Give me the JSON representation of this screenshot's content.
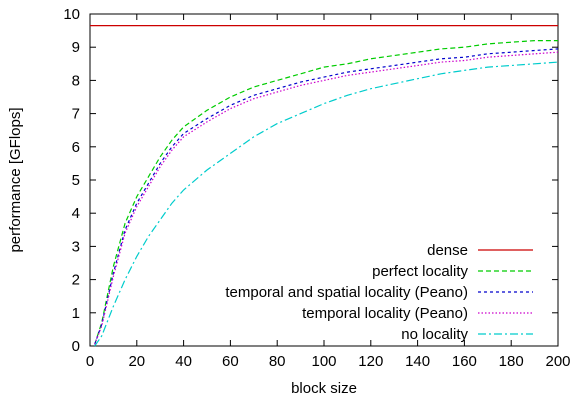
{
  "chart_data": {
    "type": "line",
    "xlabel": "block size",
    "ylabel": "performance [GFlops]",
    "xlim": [
      0,
      200
    ],
    "ylim": [
      0,
      10
    ],
    "xticks": [
      0,
      20,
      40,
      60,
      80,
      100,
      120,
      140,
      160,
      180,
      200
    ],
    "yticks": [
      0,
      1,
      2,
      3,
      4,
      5,
      6,
      7,
      8,
      9,
      10
    ],
    "grid": false,
    "legend_position": "bottom-right",
    "series": [
      {
        "name": "dense",
        "color": "#cc0000",
        "dash": "solid",
        "x": [
          0,
          200
        ],
        "y": [
          9.65,
          9.65
        ]
      },
      {
        "name": "perfect locality",
        "color": "#00cc00",
        "dash": "dashed",
        "x": [
          2,
          5,
          10,
          15,
          20,
          25,
          30,
          35,
          40,
          50,
          60,
          70,
          80,
          90,
          100,
          110,
          120,
          130,
          140,
          150,
          160,
          170,
          180,
          190,
          200
        ],
        "y": [
          0.05,
          0.7,
          2.4,
          3.7,
          4.5,
          5.1,
          5.7,
          6.2,
          6.6,
          7.1,
          7.5,
          7.8,
          8.0,
          8.2,
          8.4,
          8.5,
          8.65,
          8.75,
          8.85,
          8.95,
          9.0,
          9.1,
          9.15,
          9.2,
          9.2
        ]
      },
      {
        "name": "temporal and spatial locality (Peano)",
        "color": "#0000cc",
        "dash": "dotted",
        "x": [
          2,
          5,
          10,
          15,
          20,
          25,
          30,
          35,
          40,
          50,
          60,
          70,
          80,
          90,
          100,
          110,
          120,
          130,
          140,
          150,
          160,
          170,
          180,
          190,
          200
        ],
        "y": [
          0.05,
          0.65,
          2.2,
          3.5,
          4.3,
          4.9,
          5.5,
          6.0,
          6.4,
          6.85,
          7.25,
          7.55,
          7.75,
          7.95,
          8.1,
          8.25,
          8.35,
          8.45,
          8.55,
          8.65,
          8.7,
          8.8,
          8.85,
          8.9,
          8.95
        ]
      },
      {
        "name": "temporal locality (Peano)",
        "color": "#cc00cc",
        "dash": "densely-dotted",
        "x": [
          2,
          5,
          10,
          15,
          20,
          25,
          30,
          35,
          40,
          50,
          60,
          70,
          80,
          90,
          100,
          110,
          120,
          130,
          140,
          150,
          160,
          170,
          180,
          190,
          200
        ],
        "y": [
          0.05,
          0.6,
          2.1,
          3.4,
          4.2,
          4.8,
          5.4,
          5.9,
          6.3,
          6.75,
          7.15,
          7.45,
          7.65,
          7.85,
          8.0,
          8.15,
          8.25,
          8.35,
          8.45,
          8.55,
          8.6,
          8.7,
          8.75,
          8.8,
          8.85
        ]
      },
      {
        "name": "no locality",
        "color": "#00cccc",
        "dash": "dash-dot",
        "x": [
          2,
          5,
          10,
          15,
          20,
          25,
          30,
          35,
          40,
          50,
          60,
          70,
          80,
          90,
          100,
          110,
          120,
          130,
          140,
          150,
          160,
          170,
          180,
          190,
          200
        ],
        "y": [
          0.0,
          0.3,
          1.2,
          2.0,
          2.7,
          3.3,
          3.8,
          4.3,
          4.7,
          5.3,
          5.8,
          6.3,
          6.7,
          7.0,
          7.3,
          7.55,
          7.75,
          7.9,
          8.05,
          8.2,
          8.3,
          8.4,
          8.45,
          8.5,
          8.55
        ]
      }
    ]
  }
}
